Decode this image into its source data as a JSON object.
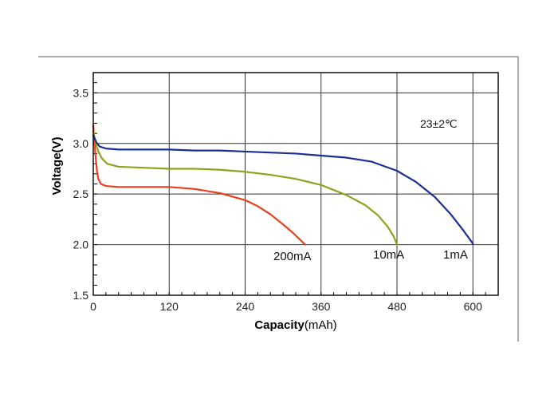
{
  "chart_data": {
    "type": "line",
    "title": "",
    "annotation": "23±2℃",
    "xlabel_bold": "Capacity",
    "xlabel_unit": "(mAh)",
    "ylabel": "Voltage(V)",
    "xlim": [
      0,
      640
    ],
    "ylim": [
      1.5,
      3.7
    ],
    "x_ticks": [
      0,
      120,
      240,
      360,
      480,
      600
    ],
    "x_tick_labels": [
      "0",
      "120",
      "240",
      "360",
      "480",
      "600"
    ],
    "y_ticks": [
      1.5,
      2.0,
      2.5,
      3.0,
      3.5
    ],
    "y_tick_labels": [
      "1.5",
      "2.0",
      "2.5",
      "3.0",
      "3.5"
    ],
    "grid": true,
    "series": [
      {
        "name": "200mA",
        "color": "#e8401c",
        "x": [
          0,
          2,
          4,
          6,
          8,
          12,
          20,
          40,
          80,
          120,
          160,
          200,
          240,
          260,
          280,
          300,
          315,
          325,
          335
        ],
        "y": [
          3.18,
          3.0,
          2.85,
          2.72,
          2.65,
          2.6,
          2.58,
          2.57,
          2.57,
          2.57,
          2.55,
          2.51,
          2.44,
          2.38,
          2.3,
          2.2,
          2.12,
          2.06,
          2.0
        ]
      },
      {
        "name": "10mA",
        "color": "#8aa51d",
        "x": [
          0,
          4,
          8,
          14,
          22,
          40,
          80,
          120,
          160,
          200,
          240,
          280,
          320,
          360,
          400,
          430,
          450,
          465,
          475,
          480
        ],
        "y": [
          3.12,
          3.0,
          2.92,
          2.85,
          2.8,
          2.77,
          2.76,
          2.75,
          2.75,
          2.74,
          2.72,
          2.69,
          2.65,
          2.59,
          2.49,
          2.39,
          2.29,
          2.18,
          2.08,
          2.0
        ]
      },
      {
        "name": "1mA",
        "color": "#1c2f96",
        "x": [
          0,
          5,
          10,
          20,
          40,
          80,
          120,
          160,
          200,
          240,
          280,
          320,
          360,
          400,
          440,
          480,
          510,
          540,
          565,
          585,
          600
        ],
        "y": [
          3.08,
          3.01,
          2.97,
          2.95,
          2.94,
          2.94,
          2.94,
          2.93,
          2.93,
          2.92,
          2.91,
          2.9,
          2.88,
          2.86,
          2.82,
          2.73,
          2.62,
          2.47,
          2.3,
          2.14,
          2.01
        ]
      }
    ]
  }
}
